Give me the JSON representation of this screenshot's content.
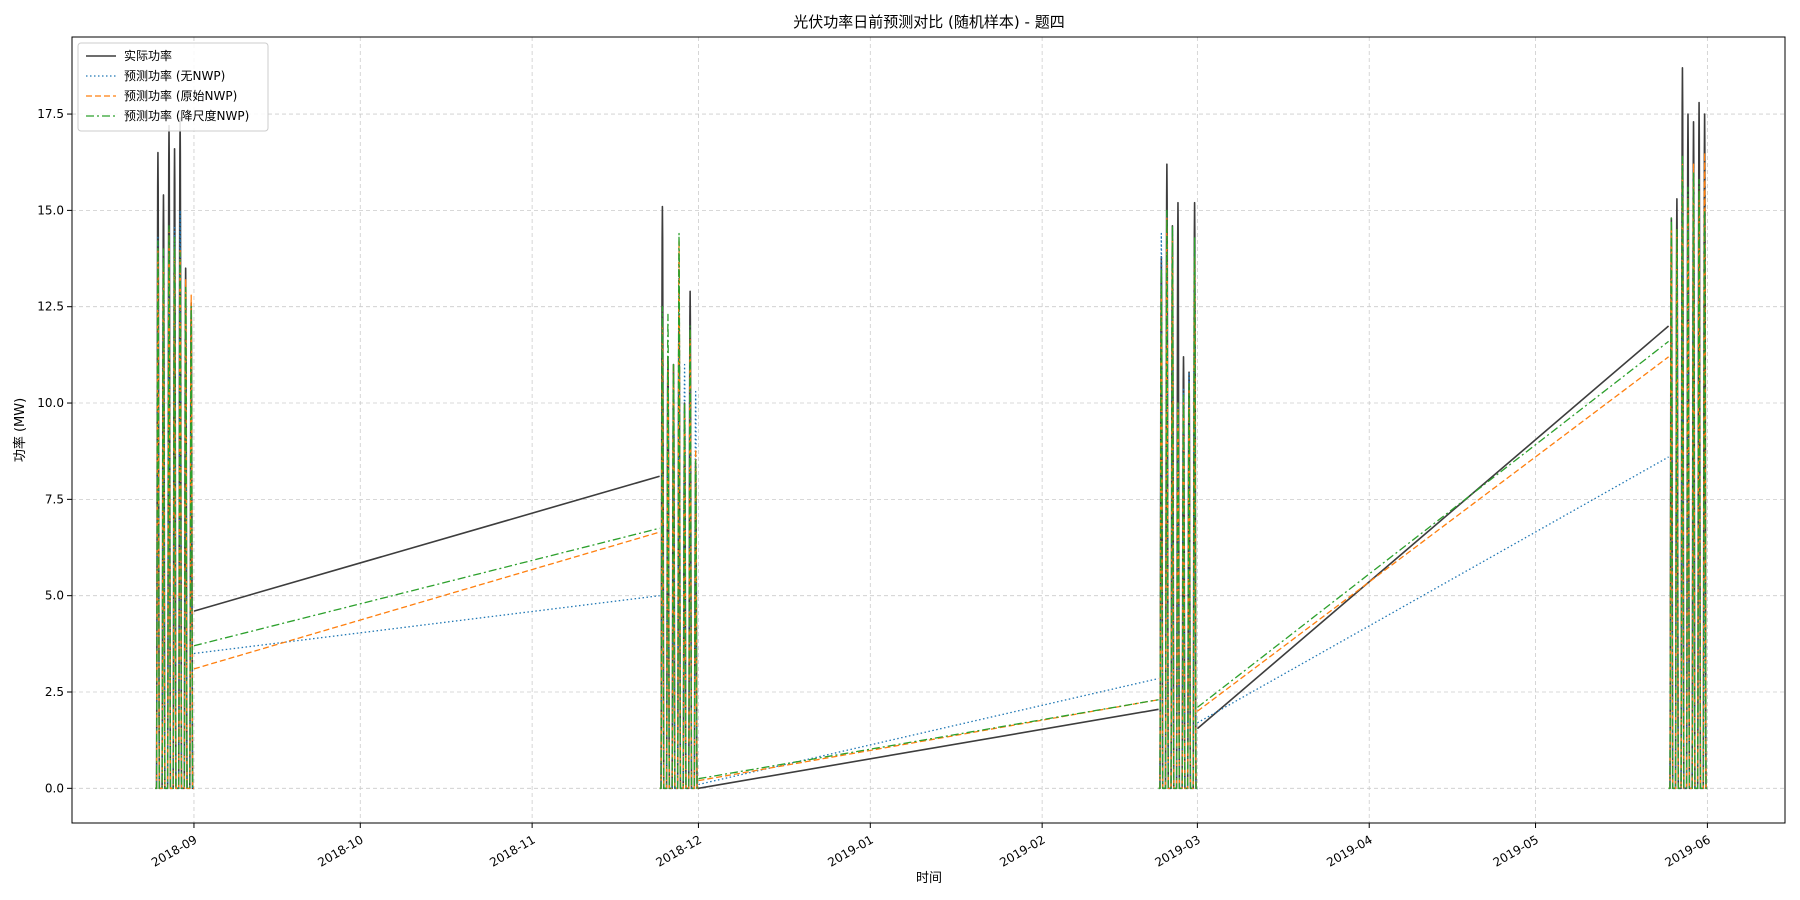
{
  "chart_data": {
    "type": "line",
    "title": "光伏功率日前预测对比 (随机样本) - 题四",
    "xlabel": "时间",
    "ylabel": "功率 (MW)",
    "xlim": [
      "2018-08-10",
      "2019-06-15"
    ],
    "ylim": [
      -0.9,
      19.5
    ],
    "grid": true,
    "legend_position": "top-left",
    "x_ticks": [
      "2018-09",
      "2018-10",
      "2018-11",
      "2018-12",
      "2019-01",
      "2019-02",
      "2019-03",
      "2019-04",
      "2019-05",
      "2019-06"
    ],
    "y_ticks": [
      "0.0",
      "2.5",
      "5.0",
      "7.5",
      "10.0",
      "12.5",
      "15.0",
      "17.5"
    ],
    "sample_windows": [
      {
        "start": "2018-08-25",
        "end": "2018-09-01"
      },
      {
        "start": "2018-11-24",
        "end": "2018-12-01"
      },
      {
        "start": "2019-02-22",
        "end": "2019-03-01"
      },
      {
        "start": "2019-05-25",
        "end": "2019-06-01"
      }
    ],
    "series": [
      {
        "name": "实际功率",
        "color": "#3d3d3d",
        "style": "solid",
        "daily_peaks": [
          [
            16.5,
            15.4,
            17.2,
            16.6,
            17.4,
            13.5,
            12.6
          ],
          [
            15.1,
            11.2,
            11.0,
            12.3,
            10.0,
            12.9,
            8.5
          ],
          [
            13.8,
            16.2,
            14.6,
            15.2,
            11.2,
            10.8,
            15.2
          ],
          [
            14.8,
            15.3,
            18.7,
            17.5,
            17.3,
            17.8,
            17.5
          ]
        ],
        "connectors": [
          [
            [
              "2018-09-01",
              4.6
            ],
            [
              "2018-11-24",
              8.1
            ]
          ],
          [
            [
              "2018-12-01",
              0.0
            ],
            [
              "2019-02-22",
              2.05
            ]
          ],
          [
            [
              "2019-03-01",
              1.55
            ],
            [
              "2019-05-25",
              12.0
            ]
          ]
        ]
      },
      {
        "name": "预测功率 (无NWP)",
        "color": "#1f77b4",
        "style": "dotted",
        "daily_peaks": [
          [
            14.3,
            13.0,
            14.0,
            14.6,
            15.0,
            12.0,
            11.0
          ],
          [
            12.0,
            11.0,
            10.5,
            14.0,
            11.0,
            10.3,
            10.3
          ],
          [
            14.4,
            15.0,
            14.5,
            10.0,
            10.4,
            10.8,
            13.9
          ],
          [
            14.0,
            14.2,
            16.3,
            15.0,
            16.1,
            14.5,
            5.5
          ]
        ],
        "connectors": [
          [
            [
              "2018-09-01",
              3.5
            ],
            [
              "2018-11-24",
              5.0
            ]
          ],
          [
            [
              "2018-12-01",
              0.1
            ],
            [
              "2019-02-22",
              2.85
            ]
          ],
          [
            [
              "2019-03-01",
              1.7
            ],
            [
              "2019-05-25",
              8.6
            ]
          ]
        ]
      },
      {
        "name": "预测功率 (原始NWP)",
        "color": "#ff7f0e",
        "style": "dashed",
        "daily_peaks": [
          [
            14.0,
            13.5,
            14.5,
            14.0,
            14.0,
            13.2,
            12.8
          ],
          [
            12.0,
            11.0,
            11.0,
            14.2,
            10.0,
            11.9,
            8.8
          ],
          [
            13.0,
            14.8,
            14.3,
            10.0,
            10.0,
            10.5,
            13.8
          ],
          [
            14.6,
            14.5,
            16.2,
            15.3,
            16.2,
            15.5,
            16.5
          ]
        ],
        "connectors": [
          [
            [
              "2018-09-01",
              3.1
            ],
            [
              "2018-11-24",
              6.65
            ]
          ],
          [
            [
              "2018-12-01",
              0.2
            ],
            [
              "2019-02-22",
              2.3
            ]
          ],
          [
            [
              "2019-03-01",
              2.0
            ],
            [
              "2019-05-25",
              11.2
            ]
          ]
        ]
      },
      {
        "name": "预测功率 (降尺度NWP)",
        "color": "#2ca02c",
        "style": "dashdot",
        "daily_peaks": [
          [
            14.2,
            14.0,
            14.6,
            14.3,
            13.9,
            13.0,
            12.5
          ],
          [
            12.5,
            12.3,
            11.0,
            14.4,
            10.0,
            12.0,
            8.5
          ],
          [
            13.5,
            15.0,
            14.6,
            10.0,
            10.2,
            10.5,
            14.3
          ],
          [
            14.8,
            14.5,
            16.4,
            15.6,
            16.0,
            15.8,
            15.0
          ]
        ],
        "connectors": [
          [
            [
              "2018-09-01",
              3.7
            ],
            [
              "2018-11-24",
              6.75
            ]
          ],
          [
            [
              "2018-12-01",
              0.25
            ],
            [
              "2019-02-22",
              2.3
            ]
          ],
          [
            [
              "2019-03-01",
              2.1
            ],
            [
              "2019-05-25",
              11.6
            ]
          ]
        ]
      }
    ]
  }
}
